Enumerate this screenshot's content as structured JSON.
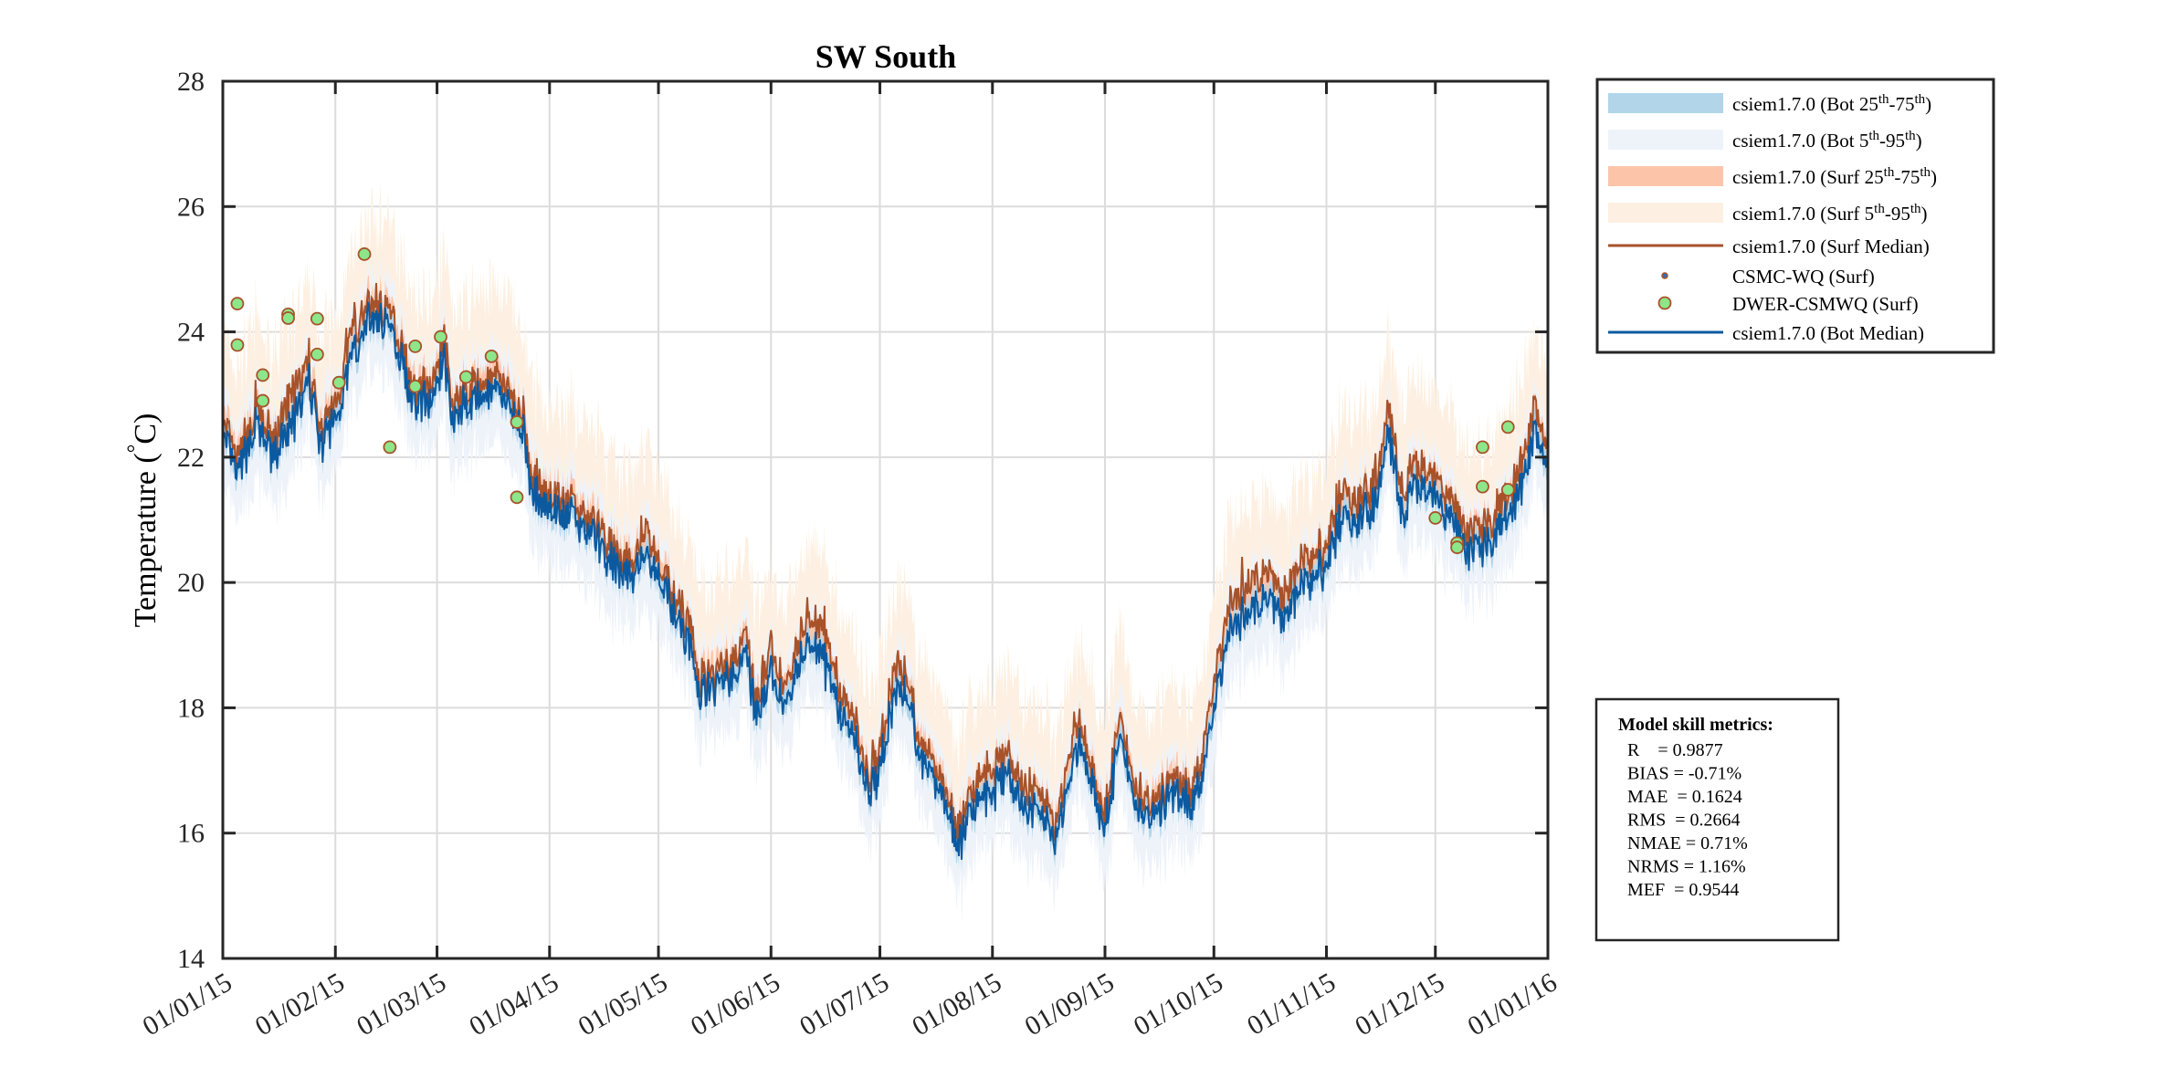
{
  "chart_data": {
    "type": "line",
    "title": "SW South",
    "xlabel": "",
    "ylabel": "Temperature (°C)",
    "ylabel_parts": {
      "before": "Temperature (",
      "sup": "°",
      "after": "C)"
    },
    "ylim": [
      14,
      28
    ],
    "yticks": [
      14,
      16,
      18,
      20,
      22,
      24,
      26,
      28
    ],
    "xlim": [
      "2015-01-01",
      "2016-01-01"
    ],
    "xtick_dates": [
      "2015-01-01",
      "2015-02-01",
      "2015-03-01",
      "2015-04-01",
      "2015-05-01",
      "2015-06-01",
      "2015-07-01",
      "2015-08-01",
      "2015-09-01",
      "2015-10-01",
      "2015-11-01",
      "2015-12-01",
      "2016-01-01"
    ],
    "xtick_labels": [
      "01/01/15",
      "01/02/15",
      "01/03/15",
      "01/04/15",
      "01/05/15",
      "01/06/15",
      "01/07/15",
      "01/08/15",
      "01/09/15",
      "01/10/15",
      "01/11/15",
      "01/12/15",
      "01/01/16"
    ],
    "grid": true,
    "legend_placement": "outside-top-right",
    "colors": {
      "bot_25_75": "#b2d5ea",
      "bot_5_95": "#eef3fa",
      "surf_25_75": "#fcc5aa",
      "surf_5_95": "#fdf0e2",
      "surf_median": "#a8522a",
      "bot_median": "#0b5aa0",
      "obs_fill": "#8de68a",
      "obs_edge": "#a8522a",
      "csmc_fill": "#2a72b8"
    },
    "median_dates": [
      "2015-01-01",
      "2015-01-05",
      "2015-01-10",
      "2015-01-15",
      "2015-01-20",
      "2015-01-25",
      "2015-01-28",
      "2015-02-01",
      "2015-02-05",
      "2015-02-10",
      "2015-02-15",
      "2015-02-20",
      "2015-02-22",
      "2015-02-28",
      "2015-03-03",
      "2015-03-05",
      "2015-03-15",
      "2015-03-20",
      "2015-03-25",
      "2015-03-27",
      "2015-04-05",
      "2015-04-10",
      "2015-04-15",
      "2015-04-20",
      "2015-04-25",
      "2015-04-28",
      "2015-05-01",
      "2015-05-05",
      "2015-05-10",
      "2015-05-12",
      "2015-05-20",
      "2015-05-25",
      "2015-05-28",
      "2015-06-01",
      "2015-06-05",
      "2015-06-10",
      "2015-06-15",
      "2015-06-20",
      "2015-06-25",
      "2015-06-28",
      "2015-07-01",
      "2015-07-05",
      "2015-07-08",
      "2015-07-12",
      "2015-07-16",
      "2015-07-20",
      "2015-07-23",
      "2015-07-27",
      "2015-08-01",
      "2015-08-05",
      "2015-08-10",
      "2015-08-15",
      "2015-08-18",
      "2015-08-22",
      "2015-08-25",
      "2015-08-28",
      "2015-09-01",
      "2015-09-05",
      "2015-09-10",
      "2015-09-15",
      "2015-09-20",
      "2015-09-25",
      "2015-09-28",
      "2015-10-01",
      "2015-10-05",
      "2015-10-10",
      "2015-10-15",
      "2015-10-20",
      "2015-10-25",
      "2015-11-01",
      "2015-11-05",
      "2015-11-10",
      "2015-11-15",
      "2015-11-18",
      "2015-11-22",
      "2015-11-25",
      "2015-12-01",
      "2015-12-05",
      "2015-12-10",
      "2015-12-15",
      "2015-12-20",
      "2015-12-25",
      "2015-12-28",
      "2015-12-31"
    ],
    "bot_median": [
      22.3,
      21.7,
      22.5,
      22.0,
      22.5,
      23.2,
      22.2,
      22.6,
      23.5,
      24.2,
      24.2,
      23.5,
      22.8,
      23.0,
      23.6,
      22.7,
      23.0,
      22.9,
      22.4,
      21.4,
      21.1,
      20.9,
      20.6,
      20.1,
      20.2,
      20.5,
      20.1,
      19.6,
      19.0,
      18.2,
      18.5,
      18.8,
      17.8,
      18.5,
      18.0,
      19.0,
      18.8,
      18.0,
      17.3,
      16.7,
      17.0,
      18.2,
      18.3,
      17.3,
      16.8,
      16.3,
      15.8,
      16.5,
      16.6,
      16.9,
      16.4,
      16.3,
      15.9,
      16.8,
      17.5,
      16.8,
      16.1,
      17.5,
      16.4,
      16.4,
      16.6,
      16.4,
      17.0,
      18.0,
      19.2,
      19.5,
      19.8,
      19.5,
      19.9,
      20.3,
      21.0,
      21.0,
      21.3,
      22.4,
      21.0,
      21.5,
      21.3,
      21.0,
      20.5,
      20.6,
      21.0,
      21.5,
      22.3,
      22.0
    ],
    "surf_median": [
      22.5,
      21.9,
      22.7,
      22.2,
      23.0,
      23.4,
      22.4,
      22.8,
      23.9,
      24.4,
      24.4,
      23.7,
      23.0,
      23.2,
      23.9,
      22.9,
      23.2,
      23.1,
      22.6,
      21.6,
      21.3,
      21.1,
      20.8,
      20.3,
      20.4,
      20.9,
      20.3,
      19.8,
      19.3,
      18.4,
      18.7,
      19.1,
      18.0,
      18.9,
      18.3,
      19.4,
      19.2,
      18.3,
      17.6,
      16.9,
      17.3,
      18.6,
      18.6,
      17.5,
      17.0,
      16.5,
      16.0,
      16.8,
      16.9,
      17.2,
      16.7,
      16.6,
      16.1,
      17.2,
      17.8,
      17.0,
      16.3,
      17.8,
      16.6,
      16.6,
      16.8,
      16.6,
      17.3,
      18.4,
      19.6,
      19.9,
      20.2,
      19.8,
      20.3,
      20.6,
      21.4,
      21.3,
      21.6,
      22.8,
      21.3,
      21.8,
      21.6,
      21.3,
      20.8,
      20.9,
      21.3,
      21.8,
      22.7,
      22.3
    ],
    "band_dates": [
      "2015-01-01",
      "2015-01-15",
      "2015-02-01",
      "2015-02-15",
      "2015-03-01",
      "2015-03-15",
      "2015-04-01",
      "2015-04-15",
      "2015-05-01",
      "2015-05-15",
      "2015-06-01",
      "2015-06-15",
      "2015-07-01",
      "2015-07-15",
      "2015-08-01",
      "2015-08-15",
      "2015-09-01",
      "2015-09-15",
      "2015-10-01",
      "2015-10-15",
      "2015-11-01",
      "2015-11-15",
      "2015-12-01",
      "2015-12-15",
      "2015-12-31"
    ],
    "bot_p5": [
      21.6,
      21.3,
      21.9,
      23.5,
      22.5,
      22.3,
      20.5,
      19.9,
      19.4,
      17.6,
      17.8,
      18.1,
      16.3,
      16.2,
      15.9,
      15.6,
      15.4,
      15.7,
      17.3,
      19.1,
      19.6,
      20.6,
      20.6,
      19.9,
      21.3
    ],
    "bot_p25": [
      22.0,
      21.7,
      22.3,
      23.9,
      22.9,
      22.7,
      20.9,
      20.3,
      19.8,
      18.0,
      18.2,
      18.5,
      16.7,
      16.6,
      16.3,
      16.0,
      15.8,
      16.1,
      17.7,
      19.5,
      20.0,
      21.0,
      21.0,
      20.3,
      21.7
    ],
    "bot_p75": [
      22.4,
      22.1,
      22.7,
      24.3,
      23.3,
      23.1,
      21.3,
      20.7,
      20.2,
      18.4,
      18.6,
      18.9,
      17.1,
      17.0,
      16.7,
      16.4,
      16.2,
      16.5,
      18.1,
      19.9,
      20.4,
      21.4,
      21.4,
      20.7,
      22.1
    ],
    "bot_p95": [
      22.7,
      22.4,
      23.0,
      24.6,
      23.6,
      23.4,
      21.6,
      21.0,
      20.5,
      18.7,
      18.9,
      19.2,
      17.4,
      17.3,
      17.0,
      16.7,
      16.5,
      16.8,
      18.4,
      20.2,
      20.7,
      21.7,
      21.7,
      21.0,
      22.4
    ],
    "surf_p5": [
      21.8,
      21.5,
      22.1,
      23.7,
      22.7,
      22.5,
      20.7,
      20.1,
      19.6,
      17.8,
      18.0,
      18.3,
      16.5,
      16.4,
      16.1,
      15.8,
      15.6,
      15.9,
      17.5,
      19.3,
      19.8,
      20.8,
      20.8,
      20.1,
      21.5
    ],
    "surf_p25": [
      22.3,
      22.0,
      22.6,
      24.2,
      23.2,
      23.0,
      21.2,
      20.6,
      20.1,
      18.3,
      18.5,
      18.8,
      17.0,
      16.9,
      16.6,
      16.3,
      16.1,
      16.4,
      18.0,
      19.8,
      20.3,
      21.3,
      21.3,
      20.6,
      22.0
    ],
    "surf_p75": [
      22.65,
      22.35,
      22.95,
      24.55,
      23.55,
      23.35,
      21.55,
      20.95,
      20.45,
      18.65,
      18.85,
      19.15,
      17.35,
      17.25,
      16.95,
      16.65,
      16.45,
      16.75,
      18.35,
      20.15,
      20.65,
      21.65,
      21.65,
      20.95,
      22.35
    ],
    "surf_p95": [
      23.1,
      22.8,
      23.4,
      25.0,
      24.0,
      23.8,
      22.0,
      21.4,
      20.9,
      19.1,
      19.3,
      19.6,
      17.8,
      17.7,
      17.4,
      17.1,
      16.9,
      17.2,
      18.8,
      20.6,
      21.1,
      22.1,
      22.1,
      21.4,
      22.8
    ],
    "dwer_obs": [
      {
        "date": "2015-01-05",
        "value": 24.45
      },
      {
        "date": "2015-01-05",
        "value": 23.79
      },
      {
        "date": "2015-01-12",
        "value": 23.31
      },
      {
        "date": "2015-01-12",
        "value": 22.9
      },
      {
        "date": "2015-01-19",
        "value": 24.28
      },
      {
        "date": "2015-01-19",
        "value": 24.22
      },
      {
        "date": "2015-01-27",
        "value": 24.21
      },
      {
        "date": "2015-01-27",
        "value": 23.64
      },
      {
        "date": "2015-02-02",
        "value": 23.19
      },
      {
        "date": "2015-02-09",
        "value": 25.24
      },
      {
        "date": "2015-02-16",
        "value": 22.16
      },
      {
        "date": "2015-02-23",
        "value": 23.77
      },
      {
        "date": "2015-02-23",
        "value": 23.13
      },
      {
        "date": "2015-03-02",
        "value": 23.92
      },
      {
        "date": "2015-03-09",
        "value": 23.28
      },
      {
        "date": "2015-03-16",
        "value": 23.61
      },
      {
        "date": "2015-03-23",
        "value": 22.56
      },
      {
        "date": "2015-03-23",
        "value": 21.36
      },
      {
        "date": "2015-12-01",
        "value": 21.03
      },
      {
        "date": "2015-12-07",
        "value": 20.63
      },
      {
        "date": "2015-12-07",
        "value": 20.56
      },
      {
        "date": "2015-12-14",
        "value": 22.16
      },
      {
        "date": "2015-12-14",
        "value": 21.53
      },
      {
        "date": "2015-12-21",
        "value": 22.48
      },
      {
        "date": "2015-12-21",
        "value": 21.48
      }
    ]
  },
  "legend": {
    "entries": [
      {
        "key": "bot_25_75",
        "kind": "patch",
        "segments": [
          {
            "t": "csiem1.7.0 (Bot 25"
          },
          {
            "sup": "th"
          },
          {
            "t": "-75"
          },
          {
            "sup": "th"
          },
          {
            "t": ")"
          }
        ]
      },
      {
        "key": "bot_5_95",
        "kind": "patch",
        "segments": [
          {
            "t": "csiem1.7.0 (Bot 5"
          },
          {
            "sup": "th"
          },
          {
            "t": "-95"
          },
          {
            "sup": "th"
          },
          {
            "t": ")"
          }
        ]
      },
      {
        "key": "surf_25_75",
        "kind": "patch",
        "segments": [
          {
            "t": "csiem1.7.0 (Surf 25"
          },
          {
            "sup": "th"
          },
          {
            "t": "-75"
          },
          {
            "sup": "th"
          },
          {
            "t": ")"
          }
        ]
      },
      {
        "key": "surf_5_95",
        "kind": "patch",
        "segments": [
          {
            "t": "csiem1.7.0 (Surf 5"
          },
          {
            "sup": "th"
          },
          {
            "t": "-95"
          },
          {
            "sup": "th"
          },
          {
            "t": ")"
          }
        ]
      },
      {
        "key": "surf_median",
        "kind": "line",
        "segments": [
          {
            "t": "csiem1.7.0 (Surf Median)"
          }
        ]
      },
      {
        "key": "csmc",
        "kind": "smallmarker",
        "segments": [
          {
            "t": "CSMC-WQ (Surf)"
          }
        ]
      },
      {
        "key": "dwer",
        "kind": "marker",
        "segments": [
          {
            "t": "DWER-CSMWQ (Surf)"
          }
        ]
      },
      {
        "key": "bot_median",
        "kind": "line",
        "segments": [
          {
            "t": "csiem1.7.0 (Bot Median)"
          }
        ]
      }
    ]
  },
  "metrics": {
    "title": "Model skill metrics:",
    "lines": [
      "R    = 0.9877",
      "BIAS = -0.71%",
      "MAE  = 0.1624",
      "RMS  = 0.2664",
      "NMAE = 0.71%",
      "NRMS = 1.16%",
      "MEF  = 0.9544"
    ]
  }
}
